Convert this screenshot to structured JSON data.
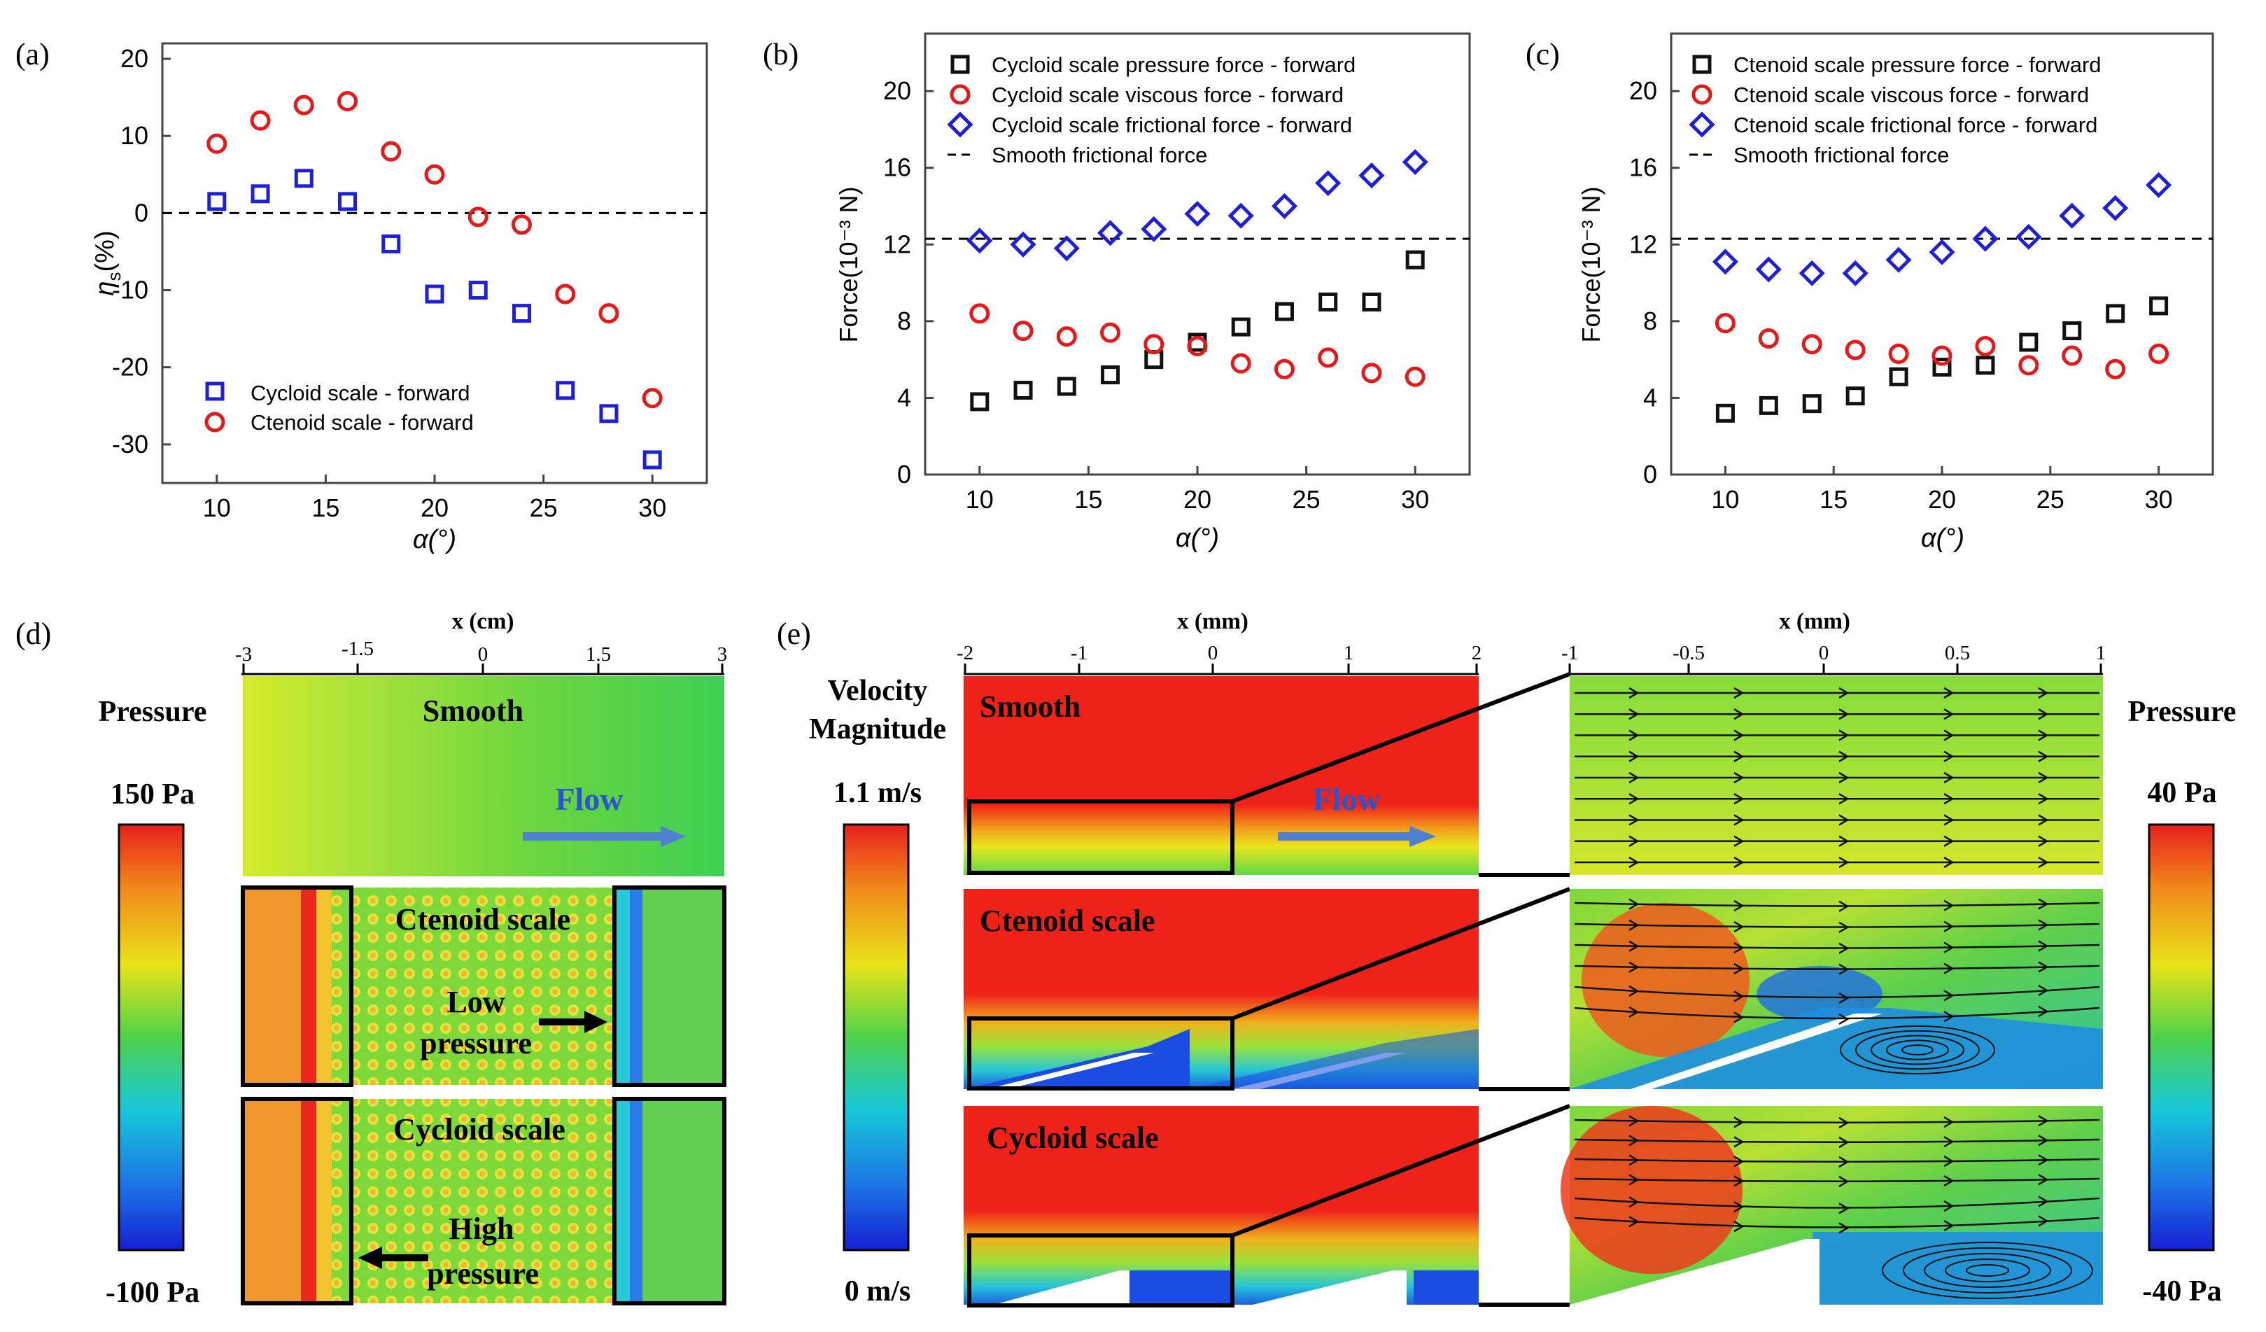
{
  "chart_data": [
    {
      "panel": "(a)",
      "type": "scatter",
      "xlabel": "α(°)",
      "ylabel": "η_s(%)",
      "ylabel_main": "η",
      "ylabel_sub": "s",
      "ylabel_unit": "(%)",
      "xlim": [
        7.5,
        32.5
      ],
      "ylim": [
        -35,
        22
      ],
      "xticks": [
        10,
        15,
        20,
        25,
        30
      ],
      "yticks": [
        -30,
        -20,
        -10,
        0,
        10,
        20
      ],
      "reference_line": 0,
      "legend_position": "bottom-left",
      "series": [
        {
          "name": "Cycloid scale - forward",
          "marker": "square",
          "color": "#1f1fd6",
          "x": [
            10,
            12,
            14,
            16,
            18,
            20,
            22,
            24,
            26,
            28,
            30
          ],
          "values": [
            1.5,
            2.5,
            4.5,
            1.5,
            -4,
            -10.5,
            -10,
            -13,
            -23,
            -26,
            -32
          ]
        },
        {
          "name": "Ctenoid scale - forward",
          "marker": "circle",
          "color": "#e31a1c",
          "x": [
            10,
            12,
            14,
            16,
            18,
            20,
            22,
            24,
            26,
            28,
            30
          ],
          "values": [
            9,
            12,
            14,
            14.5,
            8,
            5,
            -0.5,
            -1.5,
            -10.5,
            -13,
            -24
          ]
        }
      ]
    },
    {
      "panel": "(b)",
      "type": "scatter",
      "xlabel": "α(°)",
      "ylabel": "Force(10⁻³ N)",
      "xlim": [
        7.5,
        32.5
      ],
      "ylim": [
        0,
        23
      ],
      "xticks": [
        10,
        15,
        20,
        25,
        30
      ],
      "yticks": [
        0,
        4,
        8,
        12,
        16,
        20
      ],
      "reference_line": 12.3,
      "legend_position": "top-left",
      "series": [
        {
          "name": "Cycloid scale pressure force - forward",
          "marker": "square",
          "color": "#111111",
          "x": [
            10,
            12,
            14,
            16,
            18,
            20,
            22,
            24,
            26,
            28,
            30
          ],
          "values": [
            3.8,
            4.4,
            4.6,
            5.2,
            6.0,
            6.9,
            7.7,
            8.5,
            9.0,
            9.0,
            11.2
          ]
        },
        {
          "name": "Cycloid scale viscous force - forward",
          "marker": "circle",
          "color": "#e31a1c",
          "x": [
            10,
            12,
            14,
            16,
            18,
            20,
            22,
            24,
            26,
            28,
            30
          ],
          "values": [
            8.4,
            7.5,
            7.2,
            7.4,
            6.8,
            6.7,
            5.8,
            5.5,
            6.1,
            5.3,
            5.1
          ]
        },
        {
          "name": "Cycloid scale frictional force - forward",
          "marker": "diamond",
          "color": "#1f1fd6",
          "x": [
            10,
            12,
            14,
            16,
            18,
            20,
            22,
            24,
            26,
            28,
            30
          ],
          "values": [
            12.2,
            12.0,
            11.8,
            12.6,
            12.8,
            13.6,
            13.5,
            14.0,
            15.2,
            15.6,
            16.3
          ]
        },
        {
          "name": "Smooth frictional force",
          "marker": "dash",
          "color": "#000000",
          "x": [
            7.5,
            32.5
          ],
          "values": [
            12.3,
            12.3
          ]
        }
      ]
    },
    {
      "panel": "(c)",
      "type": "scatter",
      "xlabel": "α(°)",
      "ylabel": "Force(10⁻³ N)",
      "xlim": [
        7.5,
        32.5
      ],
      "ylim": [
        0,
        23
      ],
      "xticks": [
        10,
        15,
        20,
        25,
        30
      ],
      "yticks": [
        0,
        4,
        8,
        12,
        16,
        20
      ],
      "reference_line": 12.3,
      "legend_position": "top-left",
      "series": [
        {
          "name": "Ctenoid scale pressure force - forward",
          "marker": "square",
          "color": "#111111",
          "x": [
            10,
            12,
            14,
            16,
            18,
            20,
            22,
            24,
            26,
            28,
            30
          ],
          "values": [
            3.2,
            3.6,
            3.7,
            4.1,
            5.1,
            5.6,
            5.7,
            6.9,
            7.5,
            8.4,
            8.8
          ]
        },
        {
          "name": "Ctenoid scale viscous force - forward",
          "marker": "circle",
          "color": "#e31a1c",
          "x": [
            10,
            12,
            14,
            16,
            18,
            20,
            22,
            24,
            26,
            28,
            30
          ],
          "values": [
            7.9,
            7.1,
            6.8,
            6.5,
            6.3,
            6.2,
            6.7,
            5.7,
            6.2,
            5.5,
            6.3
          ]
        },
        {
          "name": "Ctenoid scale frictional force - forward",
          "marker": "diamond",
          "color": "#1f1fd6",
          "x": [
            10,
            12,
            14,
            16,
            18,
            20,
            22,
            24,
            26,
            28,
            30
          ],
          "values": [
            11.1,
            10.7,
            10.5,
            10.5,
            11.2,
            11.6,
            12.3,
            12.4,
            13.5,
            13.9,
            15.1
          ]
        },
        {
          "name": "Smooth frictional  force",
          "marker": "dash",
          "color": "#000000",
          "x": [
            7.5,
            32.5
          ],
          "values": [
            12.3,
            12.3
          ]
        }
      ]
    }
  ],
  "panel_d": {
    "label": "(d)",
    "axis_title": "x (cm)",
    "ticks": [
      "-3",
      "-1.5",
      "0",
      "1.5",
      "3"
    ],
    "colorbar_title": "Pressure",
    "colorbar_max": "150 Pa",
    "colorbar_min": "-100 Pa",
    "smooth_label": "Smooth",
    "flow_label": "Flow",
    "ctenoid_label": "Ctenoid scale",
    "cycloid_label": "Cycloid scale",
    "low_pressure": [
      "Low",
      "pressure"
    ],
    "high_pressure": [
      "High",
      "pressure"
    ]
  },
  "panel_e": {
    "label": "(e)",
    "left_axis_title": "x (mm)",
    "left_ticks": [
      "-2",
      "-1",
      "0",
      "1",
      "2"
    ],
    "right_axis_title": "x (mm)",
    "right_ticks": [
      "-1",
      "-0.5",
      "0",
      "0.5",
      "1"
    ],
    "velocity_title": [
      "Velocity",
      "Magnitude"
    ],
    "velocity_max": "1.1 m/s",
    "velocity_min": "0 m/s",
    "pressure_title": "Pressure",
    "pressure_max": "40 Pa",
    "pressure_min": "-40 Pa",
    "smooth_label": "Smooth",
    "flow_label": "Flow",
    "ctenoid_label": "Ctenoid scale",
    "cycloid_label": "Cycloid scale"
  },
  "colors": {
    "cycloid_blue": "#1f1fd6",
    "ctenoid_red": "#e31a1c",
    "arrow_blue": "#4f7fd0",
    "field_green": "#66d43a",
    "field_red": "#f01e1e"
  }
}
